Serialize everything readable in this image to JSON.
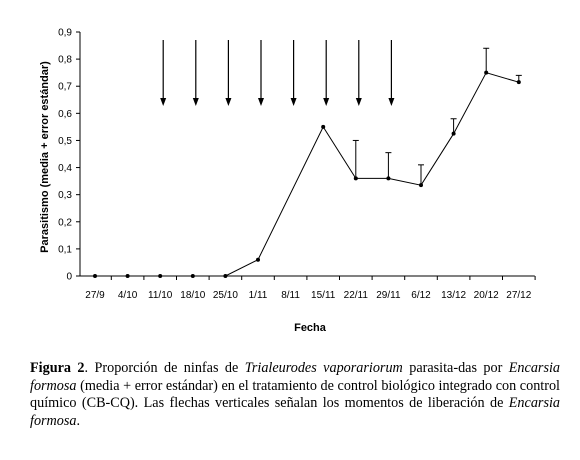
{
  "chart_data": {
    "type": "line",
    "xlabel": "Fecha",
    "ylabel": "Parasitismo (media + error estándar)",
    "categories": [
      "27/9",
      "4/10",
      "11/10",
      "18/10",
      "25/10",
      "1/11",
      "8/11",
      "15/11",
      "22/11",
      "29/11",
      "6/12",
      "13/12",
      "20/12",
      "27/12"
    ],
    "series": [
      {
        "values": [
          0,
          0,
          0,
          0,
          0,
          0.06,
          null,
          0.55,
          0.36,
          0.36,
          0.335,
          0.525,
          0.75,
          0.715
        ],
        "errors": [
          0,
          0,
          0,
          0,
          0,
          0,
          null,
          0,
          0.14,
          0.095,
          0.075,
          0.055,
          0.09,
          0.025
        ]
      }
    ],
    "ylim": [
      0,
      0.9
    ],
    "yticks": [
      "0",
      "0,1",
      "0,2",
      "0,3",
      "0,4",
      "0,5",
      "0,6",
      "0,7",
      "0,8",
      "0,9"
    ],
    "release_arrows": [
      "11/10",
      "18/10",
      "25/10",
      "1/11",
      "8/11",
      "15/11",
      "22/11",
      "29/11"
    ],
    "grid": false
  },
  "caption": {
    "label": "Figura 2",
    "t1": ". Proporción de ninfas de ",
    "i1": "Trialeurodes vaporariorum",
    "t2": " parasita-das por ",
    "i2": "Encarsia formosa",
    "t3": " (media + error estándar) en el tratamiento de control biológico integrado con control químico (CB-CQ). Las flechas verticales señalan los momentos de liberación de ",
    "i3": "Encarsia formosa",
    "t4": "."
  }
}
